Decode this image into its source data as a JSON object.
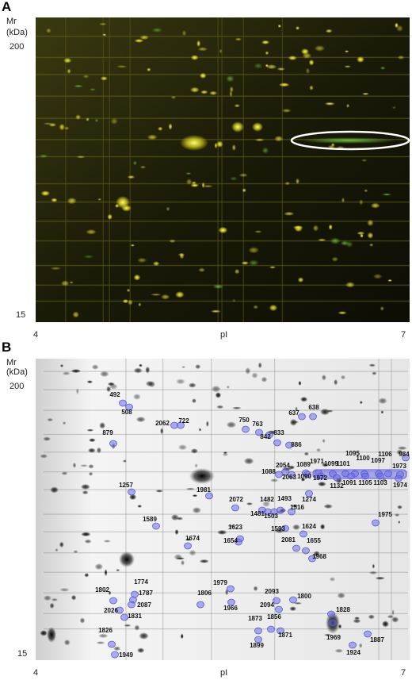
{
  "panel_a": {
    "label": "A",
    "y_axis_title": "Mr",
    "y_axis_unit": "(kDa)",
    "y_top": "200",
    "y_bottom": "15",
    "x_left": "4",
    "x_axis_title": "pI",
    "x_right": "7"
  },
  "panel_b": {
    "label": "B",
    "y_axis_title": "Mr",
    "y_axis_unit": "(kDa)",
    "y_top": "200",
    "y_bottom": "15",
    "x_left": "4",
    "x_axis_title": "pI",
    "x_right": "7",
    "spot_labels": [
      "492",
      "508",
      "2062",
      "722",
      "750",
      "763",
      "637",
      "638",
      "879",
      "833",
      "842",
      "886",
      "1971",
      "1099",
      "1101",
      "1095",
      "1100",
      "1097",
      "1106",
      "984",
      "1973",
      "1974",
      "2054",
      "1089",
      "1088",
      "2063",
      "1090",
      "1972",
      "1132",
      "1091",
      "1105",
      "1103",
      "1274",
      "1257",
      "1981",
      "2072",
      "1482",
      "1493",
      "1481",
      "1503",
      "1516",
      "1975",
      "1589",
      "1593",
      "1623",
      "1624",
      "1654",
      "1674",
      "2081",
      "1655",
      "1968",
      "1774",
      "1979",
      "1787",
      "1802",
      "2087",
      "1806",
      "2026",
      "2093",
      "1800",
      "1966",
      "1831",
      "1828",
      "1873",
      "1856",
      "2094",
      "1871",
      "1826",
      "1969",
      "1887",
      "1899",
      "1924",
      "1949"
    ]
  }
}
